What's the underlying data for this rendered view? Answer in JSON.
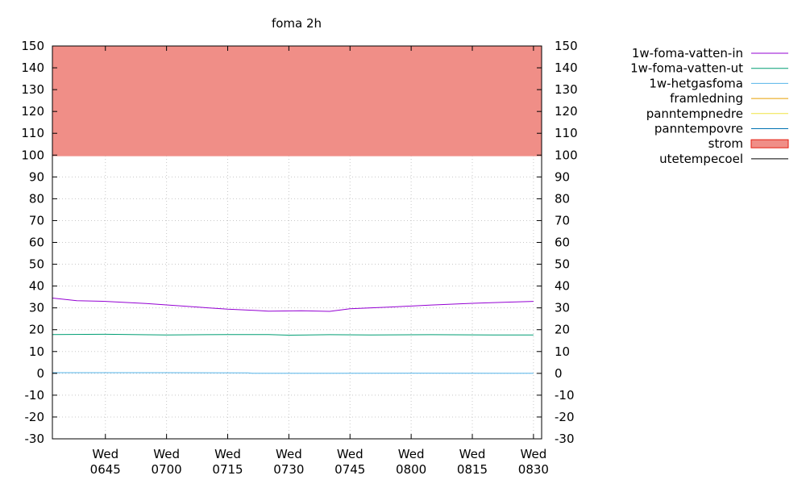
{
  "chart_data": {
    "type": "line",
    "title": "foma 2h",
    "xlabel": "",
    "ylabel": "",
    "ylim": [
      -30,
      150
    ],
    "y_ticks": [
      150,
      140,
      130,
      120,
      110,
      100,
      90,
      80,
      70,
      60,
      50,
      40,
      30,
      20,
      10,
      0,
      -10,
      -20,
      -30
    ],
    "y2_ticks": [
      150,
      140,
      130,
      120,
      110,
      100,
      90,
      80,
      70,
      60,
      50,
      40,
      30,
      20,
      10,
      0,
      -10,
      -20,
      -30
    ],
    "xlim": [
      "06:32",
      "08:32"
    ],
    "x_ticks": [
      {
        "t": "06:45",
        "day": "Wed",
        "time": "0645"
      },
      {
        "t": "07:00",
        "day": "Wed",
        "time": "0700"
      },
      {
        "t": "07:15",
        "day": "Wed",
        "time": "0715"
      },
      {
        "t": "07:30",
        "day": "Wed",
        "time": "0730"
      },
      {
        "t": "07:45",
        "day": "Wed",
        "time": "0745"
      },
      {
        "t": "08:00",
        "day": "Wed",
        "time": "0800"
      },
      {
        "t": "08:15",
        "day": "Wed",
        "time": "0815"
      },
      {
        "t": "08:30",
        "day": "Wed",
        "time": "0830"
      }
    ],
    "grid": true,
    "legend_position": "right",
    "series": [
      {
        "name": "1w-foma-vatten-in",
        "style": "line",
        "color": "#9400d3",
        "points": [
          [
            "06:32",
            34.5
          ],
          [
            "06:38",
            33.3
          ],
          [
            "06:45",
            33.0
          ],
          [
            "06:55",
            32.0
          ],
          [
            "07:05",
            30.7
          ],
          [
            "07:15",
            29.4
          ],
          [
            "07:22",
            28.8
          ],
          [
            "07:25",
            28.5
          ],
          [
            "07:33",
            28.7
          ],
          [
            "07:40",
            28.4
          ],
          [
            "07:45",
            29.6
          ],
          [
            "07:55",
            30.4
          ],
          [
            "08:05",
            31.3
          ],
          [
            "08:15",
            32.1
          ],
          [
            "08:25",
            32.7
          ],
          [
            "08:30",
            33.0
          ]
        ]
      },
      {
        "name": "1w-foma-vatten-ut",
        "style": "line",
        "color": "#009e73",
        "points": [
          [
            "06:32",
            17.8
          ],
          [
            "06:45",
            17.9
          ],
          [
            "07:00",
            17.6
          ],
          [
            "07:15",
            17.8
          ],
          [
            "07:25",
            17.8
          ],
          [
            "07:30",
            17.5
          ],
          [
            "07:40",
            17.7
          ],
          [
            "07:50",
            17.6
          ],
          [
            "08:05",
            17.7
          ],
          [
            "08:20",
            17.6
          ],
          [
            "08:30",
            17.6
          ]
        ]
      },
      {
        "name": "1w-hetgasfoma",
        "style": "line",
        "color": "#56b4e9",
        "points": [
          [
            "06:32",
            0.3
          ],
          [
            "07:00",
            0.3
          ],
          [
            "07:20",
            0.2
          ],
          [
            "07:21",
            0.0
          ],
          [
            "07:40",
            0.0
          ],
          [
            "08:00",
            0.1
          ],
          [
            "08:30",
            0.0
          ]
        ]
      },
      {
        "name": "framledning",
        "style": "line",
        "color": "#e69f00",
        "points": []
      },
      {
        "name": "panntempnedre",
        "style": "line",
        "color": "#f0e442",
        "points": []
      },
      {
        "name": "panntempovre",
        "style": "line",
        "color": "#0072b2",
        "points": []
      },
      {
        "name": "strom",
        "style": "filled",
        "color": "#f08e87",
        "border": "#e51e10",
        "points": [
          [
            "06:32",
            99.5
          ],
          [
            "08:32",
            99.5
          ]
        ],
        "fill_to": 150
      },
      {
        "name": "utetempecoel",
        "style": "line",
        "color": "#000000",
        "points": []
      }
    ]
  }
}
